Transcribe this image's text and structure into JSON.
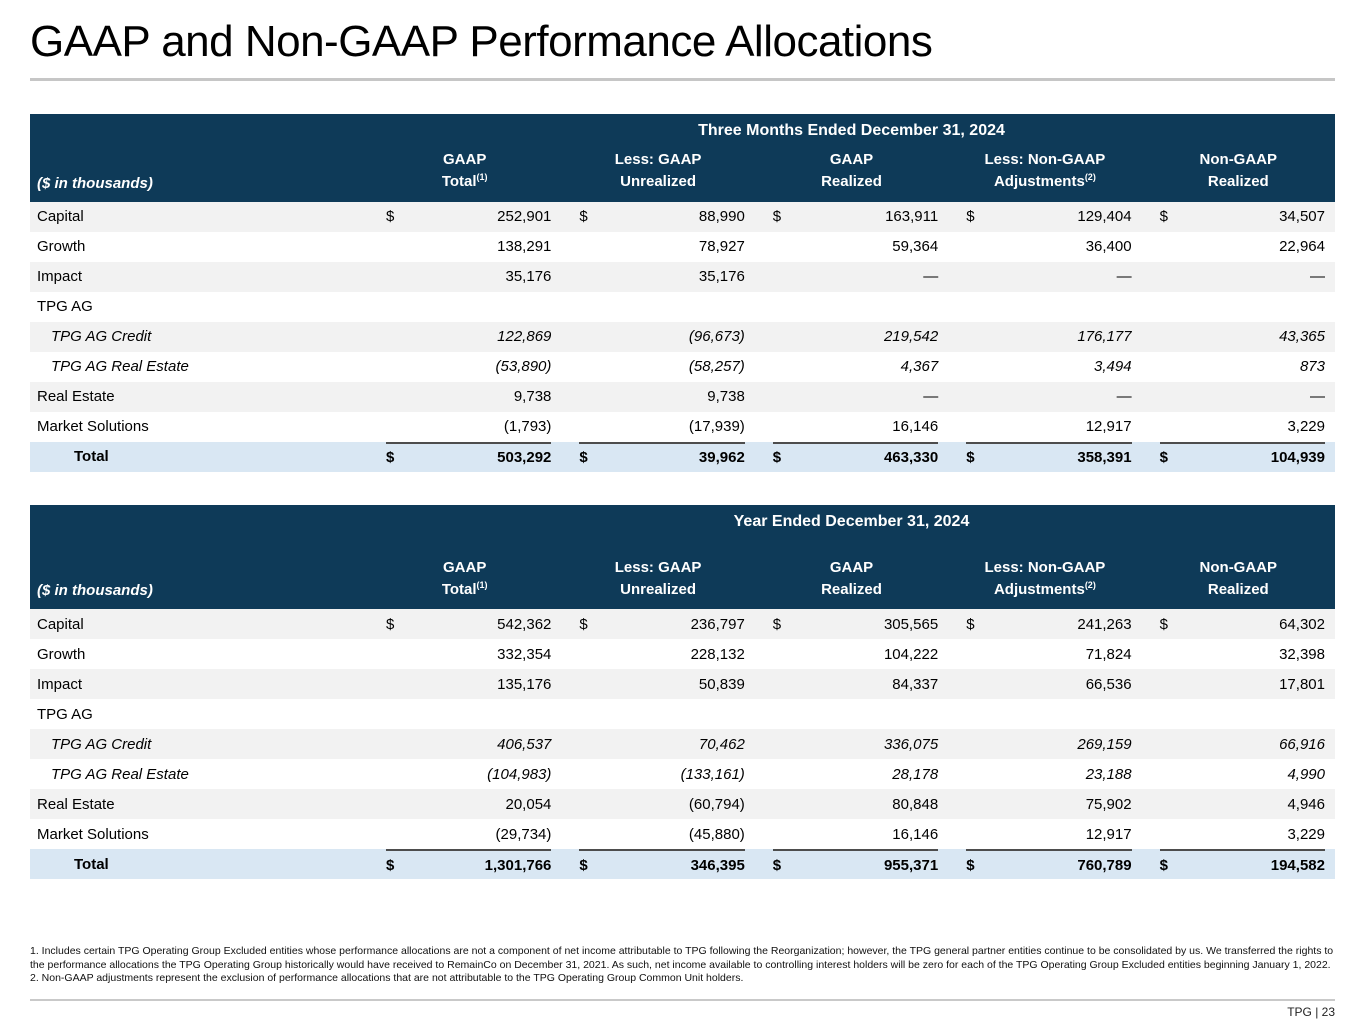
{
  "title": "GAAP and Non-GAAP Performance Allocations",
  "currency": "$",
  "tables": [
    {
      "period_header": "Three Months Ended December 31, 2024",
      "row_label_header": "($ in thousands)",
      "columns": [
        {
          "line1": "GAAP",
          "line2": "Total",
          "sup": "(1)"
        },
        {
          "line1": "Less: GAAP",
          "line2": "Unrealized",
          "sup": ""
        },
        {
          "line1": "GAAP",
          "line2": "Realized",
          "sup": ""
        },
        {
          "line1": "Less: Non-GAAP",
          "line2": "Adjustments",
          "sup": "(2)"
        },
        {
          "line1": "Non-GAAP",
          "line2": "Realized",
          "sup": ""
        }
      ],
      "rows": [
        {
          "label": "Capital",
          "dollar": true,
          "italic": false,
          "indent": false,
          "values": [
            "252,901",
            "88,990",
            "163,911",
            "129,404",
            "34,507"
          ]
        },
        {
          "label": "Growth",
          "dollar": false,
          "italic": false,
          "indent": false,
          "values": [
            "138,291",
            "78,927",
            "59,364",
            "36,400",
            "22,964"
          ]
        },
        {
          "label": "Impact",
          "dollar": false,
          "italic": false,
          "indent": false,
          "values": [
            "35,176",
            "35,176",
            "—",
            "—",
            "—"
          ]
        },
        {
          "label": "TPG AG",
          "dollar": false,
          "italic": false,
          "indent": false,
          "values": [
            "",
            "",
            "",
            "",
            ""
          ]
        },
        {
          "label": "TPG AG Credit",
          "dollar": false,
          "italic": true,
          "indent": true,
          "values": [
            "122,869",
            "(96,673)",
            "219,542",
            "176,177",
            "43,365"
          ]
        },
        {
          "label": "TPG AG Real Estate",
          "dollar": false,
          "italic": true,
          "indent": true,
          "values": [
            "(53,890)",
            "(58,257)",
            "4,367",
            "3,494",
            "873"
          ]
        },
        {
          "label": "Real Estate",
          "dollar": false,
          "italic": false,
          "indent": false,
          "values": [
            "9,738",
            "9,738",
            "—",
            "—",
            "—"
          ]
        },
        {
          "label": "Market Solutions",
          "dollar": false,
          "italic": false,
          "indent": false,
          "values": [
            "(1,793)",
            "(17,939)",
            "16,146",
            "12,917",
            "3,229"
          ]
        }
      ],
      "total": {
        "label": "Total",
        "dollar": true,
        "values": [
          "503,292",
          "39,962",
          "463,330",
          "358,391",
          "104,939"
        ]
      }
    },
    {
      "period_header": "Year Ended December 31, 2024",
      "row_label_header": "($ in thousands)",
      "columns": [
        {
          "line1": "GAAP",
          "line2": "Total",
          "sup": "(1)"
        },
        {
          "line1": "Less: GAAP",
          "line2": "Unrealized",
          "sup": ""
        },
        {
          "line1": "GAAP",
          "line2": "Realized",
          "sup": ""
        },
        {
          "line1": "Less: Non-GAAP",
          "line2": "Adjustments",
          "sup": "(2)"
        },
        {
          "line1": "Non-GAAP",
          "line2": "Realized",
          "sup": ""
        }
      ],
      "rows": [
        {
          "label": "Capital",
          "dollar": true,
          "italic": false,
          "indent": false,
          "values": [
            "542,362",
            "236,797",
            "305,565",
            "241,263",
            "64,302"
          ]
        },
        {
          "label": "Growth",
          "dollar": false,
          "italic": false,
          "indent": false,
          "values": [
            "332,354",
            "228,132",
            "104,222",
            "71,824",
            "32,398"
          ]
        },
        {
          "label": "Impact",
          "dollar": false,
          "italic": false,
          "indent": false,
          "values": [
            "135,176",
            "50,839",
            "84,337",
            "66,536",
            "17,801"
          ]
        },
        {
          "label": "TPG AG",
          "dollar": false,
          "italic": false,
          "indent": false,
          "values": [
            "",
            "",
            "",
            "",
            ""
          ]
        },
        {
          "label": "TPG AG Credit",
          "dollar": false,
          "italic": true,
          "indent": true,
          "values": [
            "406,537",
            "70,462",
            "336,075",
            "269,159",
            "66,916"
          ]
        },
        {
          "label": "TPG AG Real Estate",
          "dollar": false,
          "italic": true,
          "indent": true,
          "values": [
            "(104,983)",
            "(133,161)",
            "28,178",
            "23,188",
            "4,990"
          ]
        },
        {
          "label": "Real Estate",
          "dollar": false,
          "italic": false,
          "indent": false,
          "values": [
            "20,054",
            "(60,794)",
            "80,848",
            "75,902",
            "4,946"
          ]
        },
        {
          "label": "Market Solutions",
          "dollar": false,
          "italic": false,
          "indent": false,
          "values": [
            "(29,734)",
            "(45,880)",
            "16,146",
            "12,917",
            "3,229"
          ]
        }
      ],
      "total": {
        "label": "Total",
        "dollar": true,
        "values": [
          "1,301,766",
          "346,395",
          "955,371",
          "760,789",
          "194,582"
        ]
      }
    }
  ],
  "footnotes": [
    "1. Includes certain TPG Operating Group Excluded entities whose performance allocations are not a component of net income attributable to TPG following the Reorganization; however, the TPG general partner entities continue to be consolidated by us. We transferred the rights to the performance allocations the TPG Operating Group historically would have received to RemainCo on December 31, 2021. As such, net income available to controlling interest holders will be zero for each of the TPG Operating Group Excluded entities beginning January 1, 2022.",
    "2. Non-GAAP adjustments represent the exclusion of performance allocations that are not attributable to the TPG Operating Group Common Unit holders."
  ],
  "footer": {
    "page_label": "TPG | 23"
  },
  "colors": {
    "header_bg": "#0E3A58",
    "total_row_bg": "#D9E7F3",
    "stripe_bg": "#F2F2F2",
    "rule_gray": "#C6C6C6"
  }
}
